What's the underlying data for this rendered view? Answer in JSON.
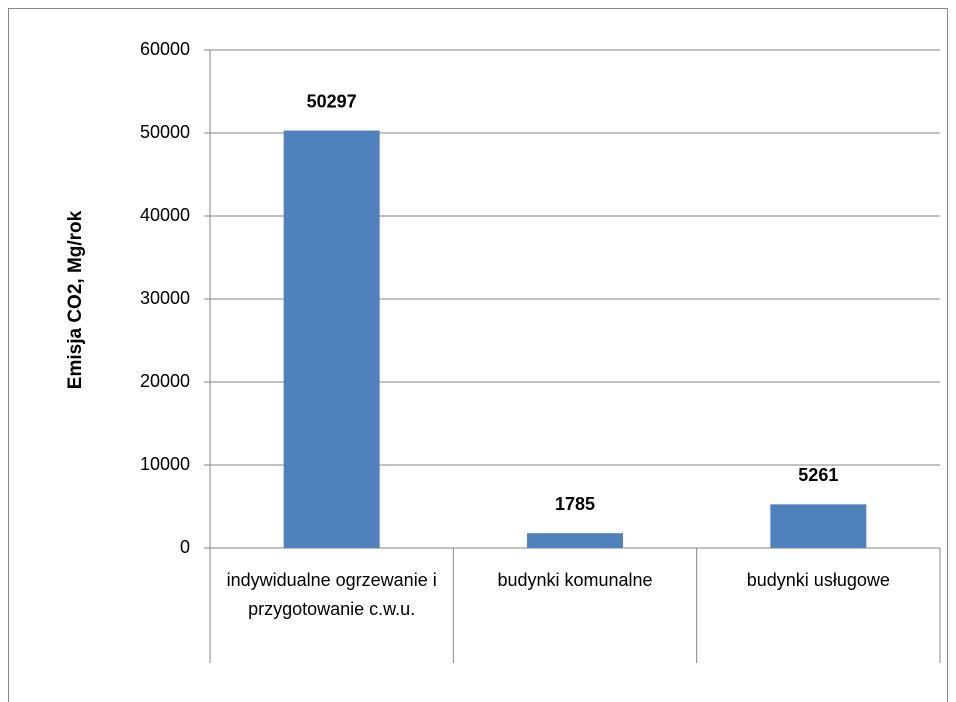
{
  "chart_data": {
    "type": "bar",
    "y_label": "Emisja CO2, Mg/rok",
    "categories": [
      "indywidualne ogrzewanie i przygotowanie c.w.u.",
      "budynki komunalne",
      "budynki usługowe"
    ],
    "values": [
      50297,
      1785,
      5261
    ],
    "color": "#4f81bd",
    "ylim": [
      0,
      60000
    ],
    "yticks": [
      0,
      10000,
      20000,
      30000,
      40000,
      50000,
      60000
    ],
    "grid": true
  }
}
